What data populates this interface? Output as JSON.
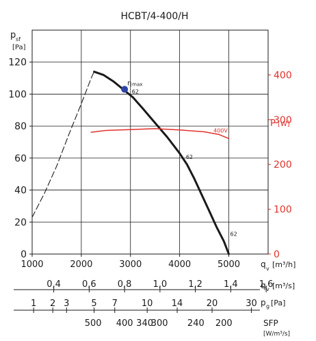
{
  "chart_data": {
    "type": "line",
    "title": "HCBT/4-400/H",
    "left_axis": {
      "label_main": "p",
      "label_sub": "sf",
      "unit": "[Pa]",
      "ticks": [
        0,
        20,
        40,
        60,
        80,
        100,
        120
      ],
      "range": [
        0,
        140
      ]
    },
    "right_axis": {
      "label": "P",
      "unit": "[W]",
      "ticks": [
        0,
        100,
        200,
        300,
        400
      ],
      "range": [
        0,
        500
      ],
      "color": "#e0312a"
    },
    "x_axis": {
      "label_main": "q",
      "label_sub": "v",
      "unit": "[m³/h]",
      "ticks": [
        1000,
        2000,
        3000,
        4000,
        5000
      ],
      "tick_labels": [
        "1000",
        "2000",
        "3000",
        "4000",
        "5000"
      ],
      "range": [
        1000,
        5800
      ]
    },
    "scale_ms": {
      "label_main": "q",
      "label_sub": "v",
      "unit": "[m³/s]",
      "ticks": [
        0.4,
        0.6,
        0.8,
        1.0,
        1.2,
        1.4,
        1.6
      ],
      "tick_labels": [
        "0,4",
        "0,6",
        "0,8",
        "1,0",
        "1,2",
        "1,4",
        "1,6"
      ]
    },
    "scale_pg": {
      "label_main": "p",
      "label_sub": "g",
      "unit": "[Pa]",
      "ticks": [
        1,
        2,
        3,
        5,
        7,
        10,
        14,
        20,
        30
      ],
      "tick_labels": [
        "1",
        "2",
        "3",
        "5",
        "7",
        "10",
        "14",
        "20",
        "30"
      ],
      "x_at": [
        1030,
        1420,
        1700,
        2260,
        2680,
        3340,
        3950,
        4660,
        5460
      ]
    },
    "scale_sfp": {
      "label": "SFP",
      "unit": "[W/m³/s]",
      "ticks": [
        500,
        400,
        340,
        300,
        240,
        200
      ],
      "tick_labels": [
        "500",
        "400",
        "340",
        "300",
        "240",
        "200"
      ],
      "x_at": [
        2240,
        2880,
        3290,
        3590,
        4330,
        4900
      ]
    },
    "series": [
      {
        "role": "pressure_dashed",
        "color": "#1a1a1a",
        "points": [
          [
            1000,
            23
          ],
          [
            1250,
            38
          ],
          [
            1500,
            55
          ],
          [
            1750,
            75
          ],
          [
            2000,
            94
          ],
          [
            2200,
            110
          ],
          [
            2260,
            114
          ]
        ]
      },
      {
        "role": "pressure",
        "color": "#1a1a1a",
        "points": [
          [
            2260,
            114
          ],
          [
            2450,
            112
          ],
          [
            2650,
            108
          ],
          [
            2850,
            103
          ],
          [
            3050,
            98
          ],
          [
            3250,
            91
          ],
          [
            3500,
            82
          ],
          [
            3750,
            73
          ],
          [
            4000,
            63
          ],
          [
            4150,
            56
          ],
          [
            4300,
            47
          ],
          [
            4450,
            37
          ],
          [
            4600,
            27
          ],
          [
            4750,
            17
          ],
          [
            4900,
            8
          ],
          [
            5000,
            0
          ]
        ]
      },
      {
        "name": "400V",
        "axis": "right",
        "color": "#e0312a",
        "points": [
          [
            2200,
            272
          ],
          [
            2500,
            276
          ],
          [
            3000,
            278
          ],
          [
            3500,
            280
          ],
          [
            4000,
            277
          ],
          [
            4500,
            273
          ],
          [
            4800,
            267
          ],
          [
            5000,
            258
          ]
        ]
      }
    ],
    "annotations": [
      {
        "text": "62",
        "x": 3000,
        "y": 100
      },
      {
        "text": "62",
        "x": 4100,
        "y": 59
      },
      {
        "text": "62",
        "x": 5000,
        "y": 11
      }
    ],
    "eta_max": {
      "label_main": "η",
      "label_sub": "max",
      "x": 2880,
      "y": 103,
      "color": "#2e45a8"
    }
  }
}
